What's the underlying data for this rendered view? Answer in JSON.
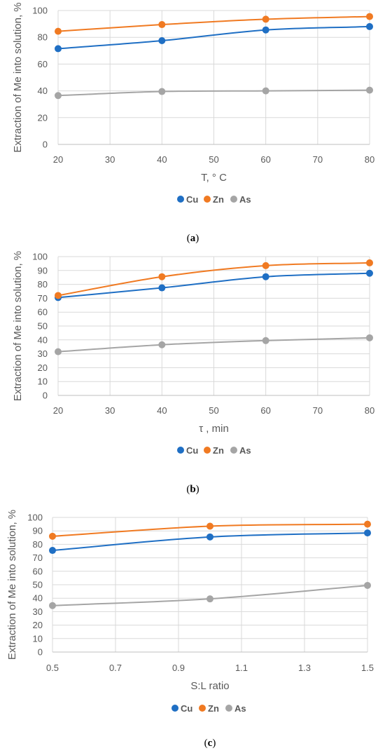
{
  "chart_data": [
    {
      "type": "line",
      "caption": "a",
      "xlabel": "T, ° C",
      "ylabel": "Extraction of Me into solution, %",
      "x": [
        20,
        40,
        60,
        80
      ],
      "xlim": [
        20,
        80
      ],
      "ylim": [
        0,
        100
      ],
      "x_ticks": [
        "20",
        "30",
        "40",
        "50",
        "60",
        "70",
        "80"
      ],
      "y_ticks": [
        "0",
        "20",
        "40",
        "60",
        "80",
        "100"
      ],
      "grid": true,
      "legend_position": "bottom",
      "series": [
        {
          "name": "Cu",
          "color": "#1f6fc4",
          "values": [
            71.5,
            77.5,
            85.5,
            88
          ]
        },
        {
          "name": "Zn",
          "color": "#f07a22",
          "values": [
            84.5,
            89.5,
            93.5,
            95.5
          ]
        },
        {
          "name": "As",
          "color": "#a5a5a5",
          "values": [
            36.5,
            39.5,
            40,
            40.5
          ]
        }
      ]
    },
    {
      "type": "line",
      "caption": "b",
      "xlabel": "τ , min",
      "ylabel": "Extraction of Me into solution, %",
      "x": [
        20,
        40,
        60,
        80
      ],
      "xlim": [
        20,
        80
      ],
      "ylim": [
        0,
        100
      ],
      "x_ticks": [
        "20",
        "30",
        "40",
        "50",
        "60",
        "70",
        "80"
      ],
      "y_ticks": [
        "0",
        "10",
        "20",
        "30",
        "40",
        "50",
        "60",
        "70",
        "80",
        "90",
        "100"
      ],
      "grid": true,
      "legend_position": "bottom",
      "series": [
        {
          "name": "Cu",
          "color": "#1f6fc4",
          "values": [
            70.5,
            77.5,
            85.5,
            88
          ]
        },
        {
          "name": "Zn",
          "color": "#f07a22",
          "values": [
            72,
            85.5,
            93.5,
            95.5
          ]
        },
        {
          "name": "As",
          "color": "#a5a5a5",
          "values": [
            31.5,
            36.5,
            39.5,
            41.5
          ]
        }
      ]
    },
    {
      "type": "line",
      "caption": "c",
      "xlabel": "S:L ratio",
      "ylabel": "Extraction of Me into solution, %",
      "x": [
        0.5,
        1.0,
        1.5
      ],
      "xlim": [
        0.5,
        1.5
      ],
      "ylim": [
        0,
        100
      ],
      "x_ticks": [
        "0.5",
        "0.7",
        "0.9",
        "1.1",
        "1.3",
        "1.5"
      ],
      "y_ticks": [
        "0",
        "10",
        "20",
        "30",
        "40",
        "50",
        "60",
        "70",
        "80",
        "90",
        "100"
      ],
      "grid": true,
      "legend_position": "bottom",
      "series": [
        {
          "name": "Cu",
          "color": "#1f6fc4",
          "values": [
            75.5,
            85.5,
            88.5
          ]
        },
        {
          "name": "Zn",
          "color": "#f07a22",
          "values": [
            86,
            93.5,
            95
          ]
        },
        {
          "name": "As",
          "color": "#a5a5a5",
          "values": [
            34.5,
            39.5,
            49.5
          ]
        }
      ]
    }
  ]
}
